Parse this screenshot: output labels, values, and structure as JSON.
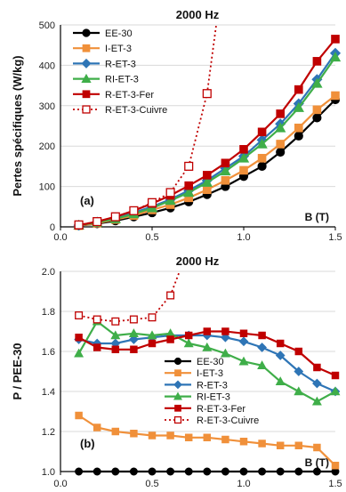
{
  "chart_data": [
    {
      "type": "line",
      "panel_label": "(a)",
      "title": "2000 Hz",
      "ylabel": "Pertes spécifiques (W/kg)",
      "xlabel": "B (T)",
      "xlim": [
        0,
        1.5
      ],
      "ylim": [
        0,
        500
      ],
      "xticks": [
        "0.0",
        "0.5",
        "1.0",
        "1.5"
      ],
      "yticks": [
        "0",
        "100",
        "200",
        "300",
        "400",
        "500"
      ],
      "grid": "horizontal",
      "legend_position": "top-left",
      "series": [
        {
          "name": "EE-30",
          "color": "#000000",
          "marker": "circle",
          "dash": "solid",
          "fill": "solid",
          "x": [
            0.1,
            0.2,
            0.3,
            0.4,
            0.5,
            0.6,
            0.7,
            0.8,
            0.9,
            1.0,
            1.1,
            1.2,
            1.3,
            1.4,
            1.5
          ],
          "y": [
            3,
            8,
            15,
            25,
            35,
            47,
            62,
            80,
            100,
            125,
            150,
            185,
            225,
            270,
            315
          ]
        },
        {
          "name": "I-ET-3",
          "color": "#f0903a",
          "marker": "square",
          "dash": "solid",
          "fill": "solid",
          "x": [
            0.1,
            0.2,
            0.3,
            0.4,
            0.5,
            0.6,
            0.7,
            0.8,
            0.9,
            1.0,
            1.1,
            1.2,
            1.3,
            1.4,
            1.5
          ],
          "y": [
            3,
            9,
            18,
            28,
            42,
            55,
            72,
            92,
            115,
            140,
            170,
            205,
            245,
            290,
            325
          ]
        },
        {
          "name": "R-ET-3",
          "color": "#2e75b6",
          "marker": "diamond",
          "dash": "solid",
          "fill": "solid",
          "x": [
            0.1,
            0.2,
            0.3,
            0.4,
            0.5,
            0.6,
            0.7,
            0.8,
            0.9,
            1.0,
            1.1,
            1.2,
            1.3,
            1.4,
            1.5
          ],
          "y": [
            4,
            12,
            22,
            35,
            50,
            68,
            90,
            115,
            145,
            175,
            215,
            255,
            305,
            365,
            430
          ]
        },
        {
          "name": "RI-ET-3",
          "color": "#3fae49",
          "marker": "triangle",
          "dash": "solid",
          "fill": "solid",
          "x": [
            0.1,
            0.2,
            0.3,
            0.4,
            0.5,
            0.6,
            0.7,
            0.8,
            0.9,
            1.0,
            1.1,
            1.2,
            1.3,
            1.4,
            1.5
          ],
          "y": [
            4,
            11,
            20,
            32,
            47,
            65,
            85,
            110,
            138,
            170,
            205,
            245,
            295,
            355,
            420
          ]
        },
        {
          "name": "R-ET-3-Fer",
          "color": "#c00000",
          "marker": "square",
          "dash": "solid",
          "fill": "solid",
          "x": [
            0.1,
            0.2,
            0.3,
            0.4,
            0.5,
            0.6,
            0.7,
            0.8,
            0.9,
            1.0,
            1.1,
            1.2,
            1.3,
            1.4,
            1.5
          ],
          "y": [
            4,
            13,
            25,
            40,
            58,
            78,
            102,
            128,
            158,
            192,
            235,
            280,
            340,
            410,
            465
          ]
        },
        {
          "name": "R-ET-3-Cuivre",
          "color": "#c00000",
          "marker": "square",
          "dash": "dotted",
          "fill": "hollow",
          "x": [
            0.1,
            0.2,
            0.3,
            0.4,
            0.5,
            0.6,
            0.7,
            0.8,
            0.85
          ],
          "y": [
            5,
            13,
            25,
            40,
            60,
            85,
            150,
            330,
            500
          ]
        }
      ]
    },
    {
      "type": "line",
      "panel_label": "(b)",
      "title": "2000 Hz",
      "ylabel": "P / PEE-30",
      "xlabel": "B (T)",
      "xlim": [
        0,
        1.5
      ],
      "ylim": [
        1.0,
        2.0
      ],
      "xticks": [
        "0.0",
        "0.5",
        "1.0",
        "1.5"
      ],
      "yticks": [
        "1.0",
        "1.2",
        "1.4",
        "1.6",
        "1.8",
        "2.0"
      ],
      "grid": "horizontal",
      "legend_position": "right",
      "series": [
        {
          "name": "EE-30",
          "color": "#000000",
          "marker": "circle",
          "dash": "solid",
          "fill": "solid",
          "x": [
            0.1,
            0.2,
            0.3,
            0.4,
            0.5,
            0.6,
            0.7,
            0.8,
            0.9,
            1.0,
            1.1,
            1.2,
            1.3,
            1.4,
            1.5
          ],
          "y": [
            1,
            1,
            1,
            1,
            1,
            1,
            1,
            1,
            1,
            1,
            1,
            1,
            1,
            1,
            1
          ]
        },
        {
          "name": "I-ET-3",
          "color": "#f0903a",
          "marker": "square",
          "dash": "solid",
          "fill": "solid",
          "x": [
            0.1,
            0.2,
            0.3,
            0.4,
            0.5,
            0.6,
            0.7,
            0.8,
            0.9,
            1.0,
            1.1,
            1.2,
            1.3,
            1.4,
            1.5
          ],
          "y": [
            1.28,
            1.22,
            1.2,
            1.19,
            1.18,
            1.18,
            1.17,
            1.17,
            1.16,
            1.15,
            1.14,
            1.13,
            1.13,
            1.12,
            1.03
          ]
        },
        {
          "name": "R-ET-3",
          "color": "#2e75b6",
          "marker": "diamond",
          "dash": "solid",
          "fill": "solid",
          "x": [
            0.1,
            0.2,
            0.3,
            0.4,
            0.5,
            0.6,
            0.7,
            0.8,
            0.9,
            1.0,
            1.1,
            1.2,
            1.3,
            1.4,
            1.5
          ],
          "y": [
            1.66,
            1.64,
            1.64,
            1.66,
            1.67,
            1.68,
            1.68,
            1.68,
            1.67,
            1.65,
            1.62,
            1.58,
            1.5,
            1.44,
            1.4
          ]
        },
        {
          "name": "RI-ET-3",
          "color": "#3fae49",
          "marker": "triangle",
          "dash": "solid",
          "fill": "solid",
          "x": [
            0.1,
            0.2,
            0.3,
            0.4,
            0.5,
            0.6,
            0.7,
            0.8,
            0.9,
            1.0,
            1.1,
            1.2,
            1.3,
            1.4,
            1.5
          ],
          "y": [
            1.59,
            1.75,
            1.68,
            1.69,
            1.68,
            1.69,
            1.64,
            1.62,
            1.59,
            1.55,
            1.53,
            1.45,
            1.4,
            1.35,
            1.4
          ]
        },
        {
          "name": "R-ET-3-Fer",
          "color": "#c00000",
          "marker": "square",
          "dash": "solid",
          "fill": "solid",
          "x": [
            0.1,
            0.2,
            0.3,
            0.4,
            0.5,
            0.6,
            0.7,
            0.8,
            0.9,
            1.0,
            1.1,
            1.2,
            1.3,
            1.4,
            1.5
          ],
          "y": [
            1.67,
            1.62,
            1.61,
            1.61,
            1.64,
            1.66,
            1.68,
            1.7,
            1.7,
            1.69,
            1.68,
            1.64,
            1.6,
            1.52,
            1.48
          ]
        },
        {
          "name": "R-ET-3-Cuivre",
          "color": "#c00000",
          "marker": "square",
          "dash": "dotted",
          "fill": "hollow",
          "x": [
            0.1,
            0.2,
            0.3,
            0.4,
            0.5,
            0.6,
            0.65
          ],
          "y": [
            1.78,
            1.76,
            1.75,
            1.76,
            1.77,
            1.88,
            2.0
          ]
        }
      ]
    }
  ]
}
